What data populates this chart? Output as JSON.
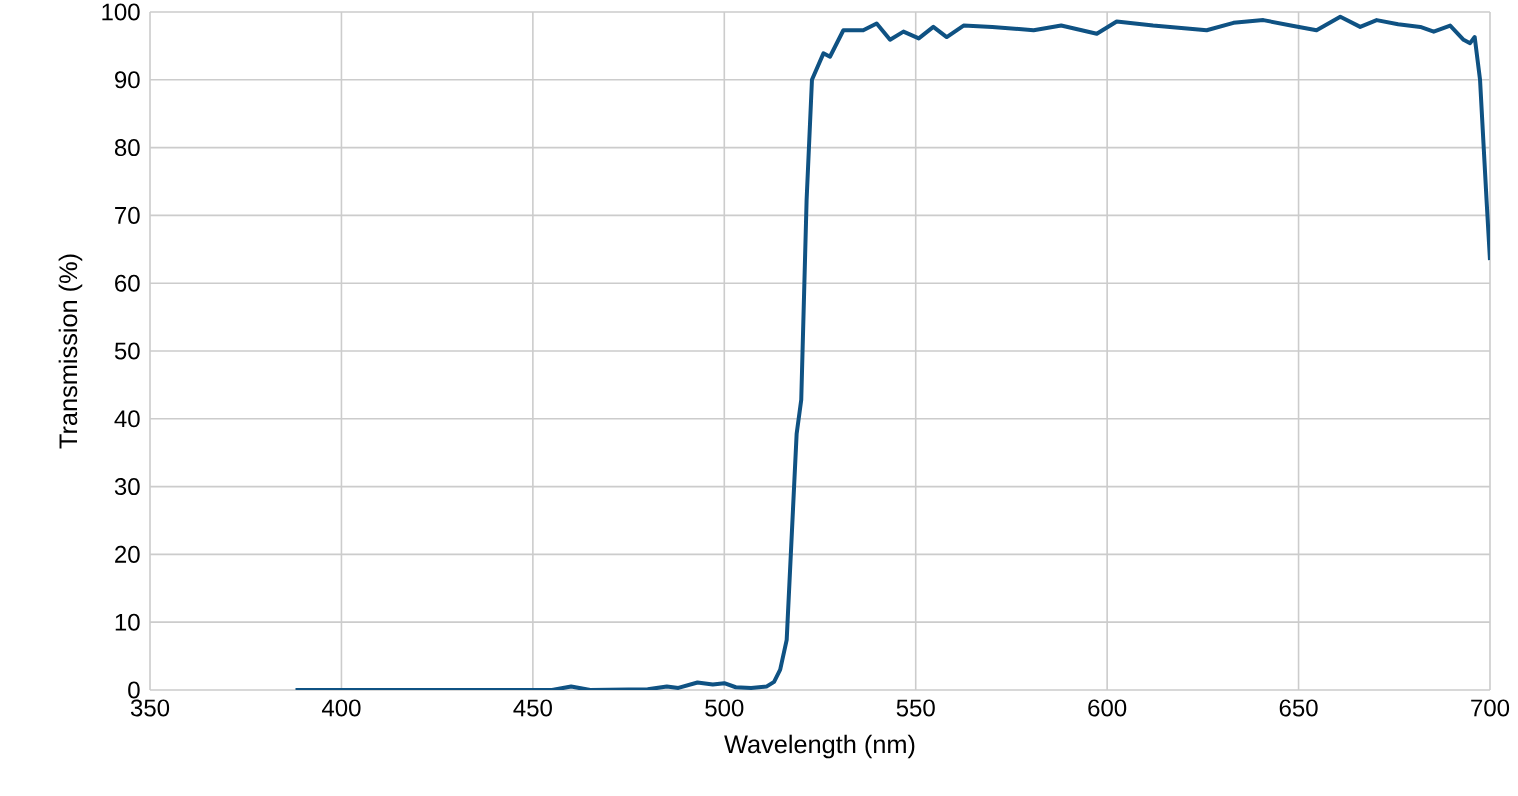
{
  "chart_data": {
    "type": "line",
    "xlabel": "Wavelength (nm)",
    "ylabel": "Transmission (%)",
    "xlim": [
      350,
      700
    ],
    "ylim": [
      0,
      100
    ],
    "xticks": [
      350,
      400,
      450,
      500,
      550,
      600,
      650,
      700
    ],
    "yticks": [
      0,
      10,
      20,
      30,
      40,
      50,
      60,
      70,
      80,
      90,
      100
    ],
    "grid": true,
    "marker": "none",
    "line_style": "solid",
    "series": [
      {
        "color": "#0f5283",
        "x": [
          388,
          420,
          455,
          460,
          465,
          480,
          485,
          488,
          493,
          497,
          500,
          503,
          507,
          511,
          513,
          514.6,
          516.3,
          518.9,
          520.1,
          521.5,
          522.9,
          525.9,
          527.6,
          531.1,
          536.3,
          539.8,
          543.3,
          546.8,
          550.8,
          554.6,
          558.1,
          562.5,
          570,
          580.8,
          588,
          597.3,
          602.5,
          612,
          626,
          633,
          640.8,
          648,
          654.7,
          660.9,
          666.1,
          670.4,
          676,
          681.8,
          685.3,
          689.6,
          693.1,
          694.8,
          696,
          697.4,
          699.1,
          700
        ],
        "values": [
          0,
          0,
          0,
          0.5,
          0,
          0.1,
          0.5,
          0.3,
          1.1,
          0.8,
          1.0,
          0.4,
          0.3,
          0.5,
          1.2,
          3,
          7.4,
          37.8,
          42.8,
          72.3,
          90,
          93.9,
          93.4,
          97.3,
          97.3,
          98.3,
          95.9,
          97.1,
          96.1,
          97.8,
          96.3,
          98,
          97.8,
          97.3,
          98,
          96.8,
          98.6,
          98,
          97.3,
          98.4,
          98.8,
          98,
          97.3,
          99.3,
          97.8,
          98.8,
          98.2,
          97.8,
          97.1,
          98,
          95.9,
          95.4,
          96.3,
          90,
          72.3,
          63.4
        ]
      }
    ]
  }
}
